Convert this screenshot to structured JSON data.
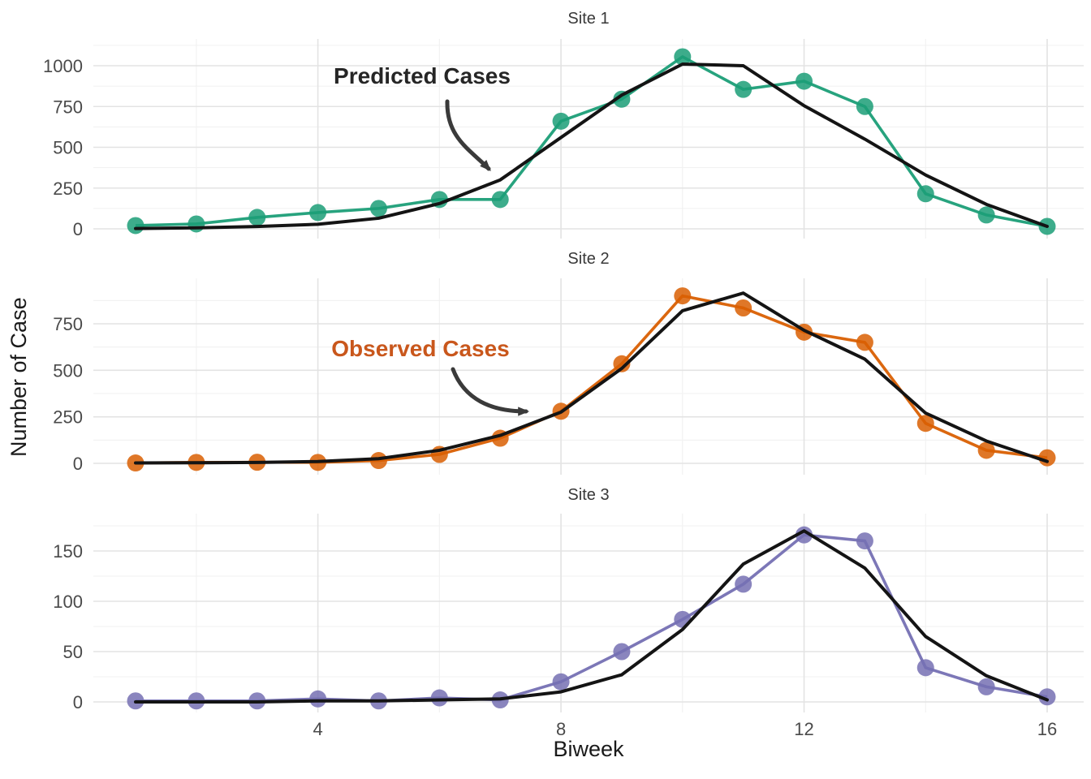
{
  "figure": {
    "x_axis_label": "Biweek",
    "y_axis_label": "Number of Case",
    "background_color": "#FFFFFF",
    "grid_major_color": "#E3E3E3",
    "grid_minor_color": "#F1F1F1",
    "tick_label_color": "#4A4A4A",
    "facet_title_color": "#383838",
    "predicted_line_color": "#141414",
    "arrow_color": "#3A3A3A",
    "x_ticks": [
      4,
      8,
      12,
      16
    ],
    "x_minor_ticks": [
      2,
      6,
      10,
      14
    ]
  },
  "chart_data": [
    {
      "type": "line",
      "panel": "Site 1",
      "xlabel": "Biweek",
      "ylabel": "Number of Case",
      "x": [
        1,
        2,
        3,
        4,
        5,
        6,
        7,
        8,
        9,
        10,
        11,
        12,
        13,
        14,
        15,
        16
      ],
      "y_ticks": [
        0,
        250,
        500,
        750,
        1000
      ],
      "series": [
        {
          "name": "Observed Cases",
          "style": "points+line",
          "color": "#1B9E77",
          "values": [
            20,
            30,
            70,
            100,
            125,
            180,
            180,
            660,
            795,
            1055,
            855,
            905,
            750,
            215,
            85,
            15
          ]
        },
        {
          "name": "Predicted Cases",
          "style": "line",
          "color": "#141414",
          "values": [
            2,
            6,
            14,
            28,
            65,
            155,
            300,
            560,
            820,
            1010,
            1000,
            755,
            550,
            330,
            150,
            15
          ]
        }
      ]
    },
    {
      "type": "line",
      "panel": "Site 2",
      "xlabel": "Biweek",
      "ylabel": "Number of Case",
      "x": [
        1,
        2,
        3,
        4,
        5,
        6,
        7,
        8,
        9,
        10,
        11,
        12,
        13,
        14,
        15,
        16
      ],
      "y_ticks": [
        0,
        250,
        500,
        750
      ],
      "series": [
        {
          "name": "Observed Cases",
          "style": "points+line",
          "color": "#D95F02",
          "values": [
            2,
            5,
            6,
            5,
            15,
            48,
            135,
            280,
            535,
            900,
            835,
            705,
            650,
            215,
            70,
            30
          ]
        },
        {
          "name": "Predicted Cases",
          "style": "line",
          "color": "#141414",
          "values": [
            2,
            3,
            5,
            10,
            25,
            70,
            150,
            275,
            510,
            820,
            915,
            715,
            560,
            270,
            120,
            10
          ]
        }
      ]
    },
    {
      "type": "line",
      "panel": "Site 3",
      "xlabel": "Biweek",
      "ylabel": "Number of Case",
      "x": [
        1,
        2,
        3,
        4,
        5,
        6,
        7,
        8,
        9,
        10,
        11,
        12,
        13,
        14,
        15,
        16
      ],
      "y_ticks": [
        0,
        50,
        100,
        150
      ],
      "series": [
        {
          "name": "Observed Cases",
          "style": "points+line",
          "color": "#7570B3",
          "values": [
            1,
            1,
            1,
            3,
            1,
            4,
            2,
            20,
            50,
            82,
            117,
            166,
            160,
            34,
            15,
            5
          ]
        },
        {
          "name": "Predicted Cases",
          "style": "line",
          "color": "#141414",
          "values": [
            0,
            0,
            0,
            1,
            1,
            2,
            3,
            10,
            27,
            72,
            137,
            170,
            133,
            65,
            26,
            2
          ]
        }
      ]
    }
  ],
  "annotations": [
    {
      "text": "Predicted Cases",
      "color": "#262626",
      "panel": "Site 1"
    },
    {
      "text": "Observed Cases",
      "color": "#C9571C",
      "panel": "Site 2"
    }
  ]
}
